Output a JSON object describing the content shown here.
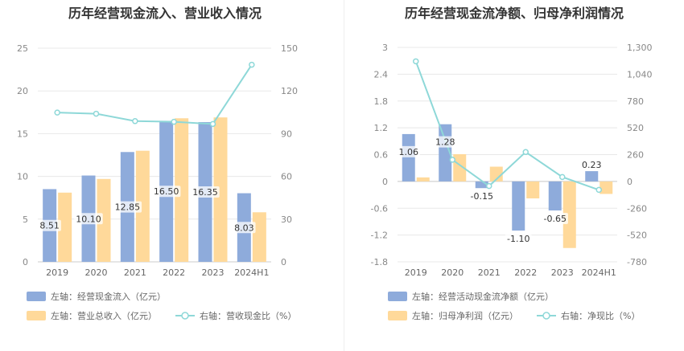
{
  "chart_data": [
    {
      "type": "bar",
      "title": "历年经营现金流入、营业收入情况",
      "categories": [
        "2019",
        "2020",
        "2021",
        "2022",
        "2023",
        "2024H1"
      ],
      "y_left_ticks": [
        "0",
        "5",
        "10",
        "15",
        "20",
        "25"
      ],
      "y_right_ticks": [
        "0",
        "30",
        "60",
        "90",
        "120",
        "150"
      ],
      "ylim_left": [
        0,
        25
      ],
      "ylim_right": [
        0,
        150
      ],
      "series": [
        {
          "name": "左轴：经营现金流入（亿元）",
          "axis": "left",
          "kind": "bar",
          "color": "#8eabdb",
          "values": [
            8.51,
            10.1,
            12.85,
            16.5,
            16.35,
            8.03
          ],
          "labels": [
            "8.51",
            "10.10",
            "12.85",
            "16.50",
            "16.35",
            "8.03"
          ]
        },
        {
          "name": "左轴：营业总收入（亿元）",
          "axis": "left",
          "kind": "bar",
          "color": "#ffd99a",
          "values": [
            8.1,
            9.7,
            13.0,
            16.8,
            16.9,
            5.8
          ]
        },
        {
          "name": "右轴：营收现金比（%）",
          "axis": "right",
          "kind": "line",
          "color": "#8ed8d8",
          "values": [
            104.8,
            104.0,
            98.8,
            98.3,
            96.8,
            138.4
          ]
        }
      ],
      "legend_position": "bottom-left",
      "grid": true
    },
    {
      "type": "bar",
      "title": "历年经营现金流净额、归母净利润情况",
      "categories": [
        "2019",
        "2020",
        "2021",
        "2022",
        "2023",
        "2024H1"
      ],
      "y_left_ticks": [
        "-1.8",
        "-1.2",
        "-0.6",
        "0",
        "0.6",
        "1.2",
        "1.8",
        "2.4",
        "3"
      ],
      "y_right_ticks": [
        "-780",
        "-520",
        "-260",
        "0",
        "260",
        "520",
        "780",
        "1,040",
        "1,300"
      ],
      "ylim_left": [
        -1.8,
        3
      ],
      "ylim_right": [
        -780,
        1300
      ],
      "series": [
        {
          "name": "左轴：经营活动现金流净额（亿元）",
          "axis": "left",
          "kind": "bar",
          "color": "#8eabdb",
          "values": [
            1.06,
            1.28,
            -0.15,
            -1.1,
            -0.65,
            0.23
          ],
          "labels": [
            "1.06",
            "1.28",
            "-0.15",
            "-1.10",
            "-0.65",
            "0.23"
          ]
        },
        {
          "name": "左轴：归母净利润（亿元）",
          "axis": "left",
          "kind": "bar",
          "color": "#ffd99a",
          "values": [
            0.09,
            0.61,
            0.33,
            -0.38,
            -1.49,
            -0.28
          ]
        },
        {
          "name": "右轴：净现比（%）",
          "axis": "right",
          "kind": "line",
          "color": "#8ed8d8",
          "values": [
            1165,
            210,
            -45,
            285,
            43,
            -82
          ]
        }
      ],
      "legend_position": "bottom-left",
      "grid": true
    }
  ]
}
